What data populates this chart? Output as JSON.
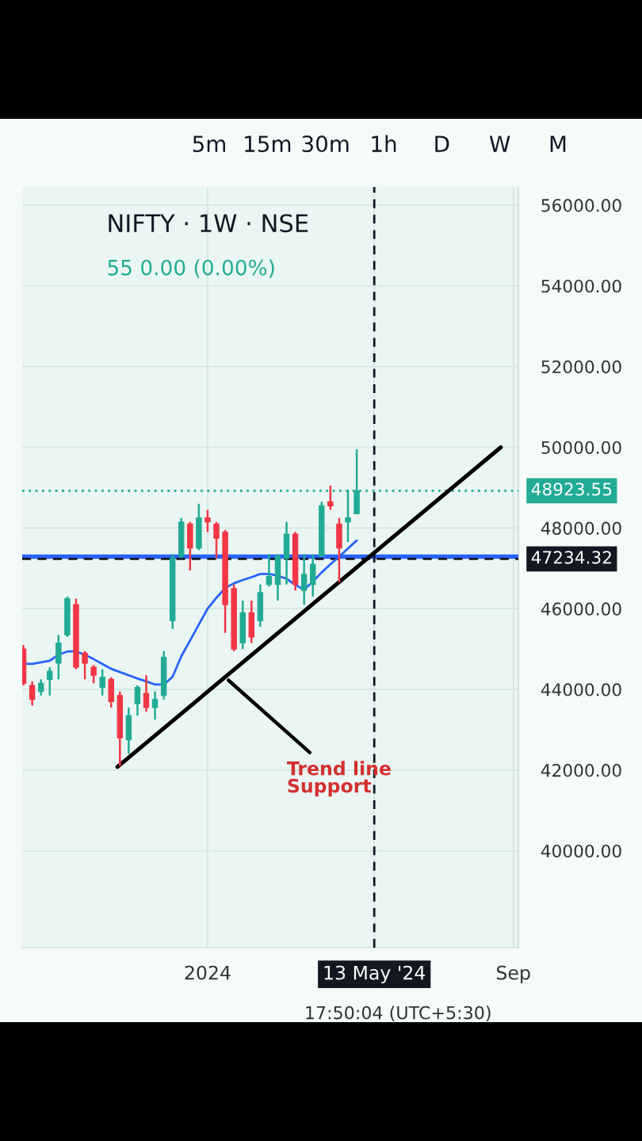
{
  "chart_data": {
    "type": "candlestick",
    "title": "NIFTY · 1W · NSE",
    "subtitle": "55 0.00 (0.00%)",
    "x": [
      "2023-08-07",
      "2023-08-14",
      "2023-08-21",
      "2023-08-28",
      "2023-09-04",
      "2023-09-11",
      "2023-09-18",
      "2023-09-25",
      "2023-10-02",
      "2023-10-09",
      "2023-10-16",
      "2023-10-23",
      "2023-10-30",
      "2023-11-06",
      "2023-11-13",
      "2023-11-20",
      "2023-11-27",
      "2023-12-04",
      "2023-12-11",
      "2023-12-18",
      "2023-12-25",
      "2024-01-01",
      "2024-01-08",
      "2024-01-15",
      "2024-01-22",
      "2024-01-29",
      "2024-02-05",
      "2024-02-12",
      "2024-02-19",
      "2024-02-26",
      "2024-03-04",
      "2024-03-11",
      "2024-03-18",
      "2024-03-25",
      "2024-04-01",
      "2024-04-08",
      "2024-04-15",
      "2024-04-22",
      "2024-04-29"
    ],
    "ohlc": [
      [
        45000,
        45100,
        44100,
        44150
      ],
      [
        44100,
        44200,
        43600,
        43750
      ],
      [
        43950,
        44250,
        43850,
        44150
      ],
      [
        44250,
        44550,
        43850,
        44450
      ],
      [
        44650,
        45350,
        44250,
        45150
      ],
      [
        45350,
        46300,
        45300,
        46250
      ],
      [
        46100,
        46250,
        44500,
        44550
      ],
      [
        44900,
        44950,
        44250,
        44650
      ],
      [
        44550,
        44600,
        44150,
        44350
      ],
      [
        44050,
        44500,
        43850,
        44300
      ],
      [
        44250,
        44300,
        43550,
        43700
      ],
      [
        43850,
        43950,
        42100,
        42800
      ],
      [
        42750,
        43550,
        42400,
        43350
      ],
      [
        43650,
        44100,
        43350,
        44050
      ],
      [
        43900,
        44350,
        43450,
        43550
      ],
      [
        43550,
        43950,
        43250,
        43750
      ],
      [
        43850,
        44950,
        43750,
        44800
      ],
      [
        45700,
        47350,
        45500,
        47250
      ],
      [
        47300,
        48250,
        47250,
        48150
      ],
      [
        48100,
        48150,
        46950,
        47500
      ],
      [
        47500,
        48600,
        47450,
        48250
      ],
      [
        48250,
        48450,
        47900,
        48150
      ],
      [
        48100,
        48150,
        47250,
        47750
      ],
      [
        47900,
        47950,
        45400,
        46100
      ],
      [
        46500,
        46600,
        44950,
        45000
      ],
      [
        45150,
        46200,
        45000,
        45900
      ],
      [
        45900,
        46200,
        45150,
        45300
      ],
      [
        45700,
        46600,
        45550,
        46400
      ],
      [
        46600,
        47350,
        46550,
        46800
      ],
      [
        46600,
        47350,
        46200,
        47300
      ],
      [
        47250,
        48150,
        46600,
        47850
      ],
      [
        47850,
        47900,
        46450,
        46600
      ],
      [
        46450,
        47350,
        46100,
        46850
      ],
      [
        46600,
        47350,
        46300,
        47100
      ],
      [
        47300,
        48650,
        47300,
        48550
      ],
      [
        48650,
        49050,
        48450,
        48550
      ],
      [
        48100,
        48250,
        46650,
        47500
      ],
      [
        48150,
        48950,
        47650,
        48250
      ],
      [
        48350,
        49950,
        48350,
        48923.55
      ]
    ],
    "colors": [
      "#f23645",
      "#f23645",
      "#22ab94",
      "#22ab94",
      "#22ab94",
      "#22ab94",
      "#f23645",
      "#f23645",
      "#f23645",
      "#22ab94",
      "#f23645",
      "#f23645",
      "#22ab94",
      "#22ab94",
      "#f23645",
      "#22ab94",
      "#22ab94",
      "#22ab94",
      "#22ab94",
      "#f23645",
      "#22ab94",
      "#f23645",
      "#f23645",
      "#f23645",
      "#f23645",
      "#22ab94",
      "#f23645",
      "#22ab94",
      "#22ab94",
      "#22ab94",
      "#22ab94",
      "#f23645",
      "#22ab94",
      "#22ab94",
      "#22ab94",
      "#f23645",
      "#f23645",
      "#22ab94",
      "#22ab94"
    ],
    "series": [
      {
        "type": "line",
        "color": "#2962ff",
        "values": [
          44630,
          44630,
          44670,
          44710,
          44860,
          44940,
          44940,
          44860,
          44750,
          44630,
          44510,
          44430,
          44350,
          44270,
          44200,
          44120,
          44120,
          44310,
          44820,
          45210,
          45610,
          46000,
          46270,
          46510,
          46630,
          46710,
          46780,
          46860,
          46860,
          46820,
          46740,
          46590,
          46470,
          46670,
          46900,
          47100,
          47290,
          47490,
          47690
        ]
      },
      {
        "type": "line",
        "color": "#000000",
        "x": [
          "2023-10-21",
          "2024-08-22"
        ],
        "values": [
          42080,
          50000
        ]
      }
    ],
    "xlim": [
      "2023-08-06",
      "2024-09-05"
    ],
    "xticks": [
      {
        "value": "2024-01-01",
        "label": "2024"
      },
      {
        "value": "2024-05-13",
        "label": "13 May '24"
      },
      {
        "value": "2024-09-01",
        "label": "Sep"
      }
    ],
    "ylim": [
      37600,
      56450
    ],
    "yticks": [
      {
        "value": 40000,
        "label": "40000.00"
      },
      {
        "value": 42000,
        "label": "42000.00"
      },
      {
        "value": 44000,
        "label": "44000.00"
      },
      {
        "value": 46000,
        "label": "46000.00"
      },
      {
        "value": 48000,
        "label": "48000.00"
      },
      {
        "value": 50000,
        "label": "50000.00"
      },
      {
        "value": 52000,
        "label": "52000.00"
      },
      {
        "value": 54000,
        "label": "54000.00"
      },
      {
        "value": 56000,
        "label": "56000.00"
      }
    ],
    "ref_lines": [
      {
        "axis": "y",
        "value": 48923.55,
        "label": "48923.55",
        "color": "#22ab94",
        "line_style": "dotted"
      },
      {
        "axis": "y",
        "value": 47290,
        "color": "#2962ff",
        "line_style": "solid"
      },
      {
        "axis": "y",
        "value": 47234.32,
        "label": "47234.32",
        "color": "#131722",
        "line_style": "dashed"
      },
      {
        "axis": "x",
        "value": "2024-05-13",
        "color": "#131722",
        "line_style": "dashed"
      }
    ],
    "annotations": [
      {
        "text": "Trend line\nSupport",
        "x": "2024-01-15",
        "y": 44300
      },
      "5m",
      "15m",
      "30m",
      "1h",
      "D",
      "W",
      "M",
      "17:50:04 (UTC+5:30)"
    ],
    "grid": true,
    "legend": false
  }
}
